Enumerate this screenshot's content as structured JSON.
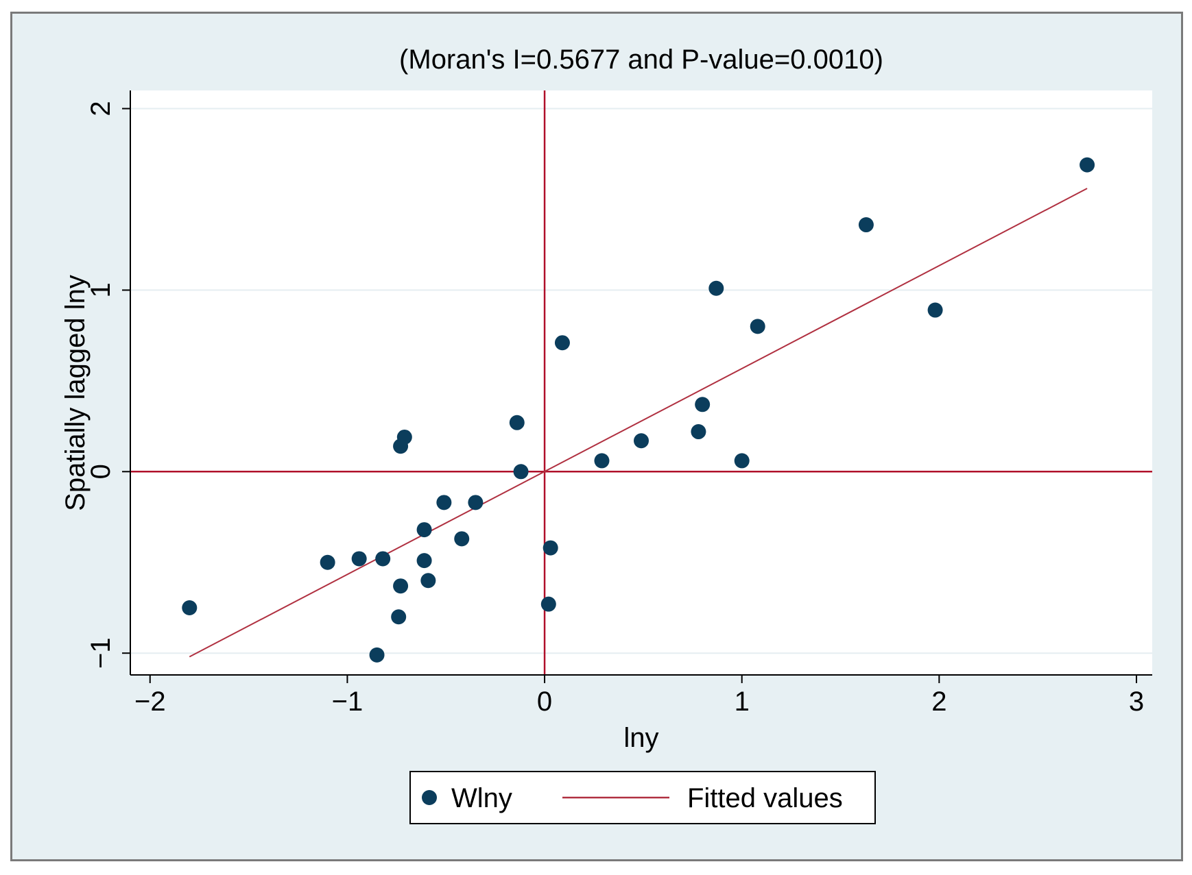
{
  "chart_data": {
    "type": "scatter",
    "title": "(Moran's I=0.5677 and P-value=0.0010)",
    "xlabel": "lny",
    "ylabel": "Spatially lagged lny",
    "xlim": [
      -2.1,
      3.08
    ],
    "ylim": [
      -1.12,
      2.1
    ],
    "xticks": [
      -2,
      -1,
      0,
      1,
      2,
      3
    ],
    "xtick_labels": [
      "−2",
      "−1",
      "0",
      "1",
      "2",
      "3"
    ],
    "yticks": [
      -1,
      0,
      1,
      2
    ],
    "ytick_labels": [
      "−1",
      "0",
      "1",
      "2"
    ],
    "grid": "horizontal",
    "reference_lines": {
      "x": 0,
      "y": 0
    },
    "series": [
      {
        "name": "Wlny",
        "kind": "scatter",
        "color": "#0b3d5c",
        "points": [
          [
            -1.8,
            -0.75
          ],
          [
            -1.1,
            -0.5
          ],
          [
            -0.94,
            -0.48
          ],
          [
            -0.82,
            -0.48
          ],
          [
            -0.85,
            -1.01
          ],
          [
            -0.74,
            -0.8
          ],
          [
            -0.73,
            -0.63
          ],
          [
            -0.73,
            0.14
          ],
          [
            -0.71,
            0.19
          ],
          [
            -0.61,
            -0.32
          ],
          [
            -0.61,
            -0.49
          ],
          [
            -0.59,
            -0.6
          ],
          [
            -0.51,
            -0.17
          ],
          [
            -0.42,
            -0.37
          ],
          [
            -0.35,
            -0.17
          ],
          [
            -0.14,
            0.27
          ],
          [
            -0.12,
            0.0
          ],
          [
            0.03,
            -0.42
          ],
          [
            0.02,
            -0.73
          ],
          [
            0.09,
            0.71
          ],
          [
            0.29,
            0.06
          ],
          [
            0.49,
            0.17
          ],
          [
            0.78,
            0.22
          ],
          [
            0.8,
            0.37
          ],
          [
            0.87,
            1.01
          ],
          [
            1.0,
            0.06
          ],
          [
            1.08,
            0.8
          ],
          [
            1.63,
            1.36
          ],
          [
            1.98,
            0.89
          ],
          [
            2.75,
            1.69
          ]
        ]
      },
      {
        "name": "Fitted values",
        "kind": "line",
        "color": "#b03040",
        "points": [
          [
            -1.8,
            -1.02
          ],
          [
            2.75,
            1.56
          ]
        ]
      }
    ],
    "legend": {
      "position": "bottom-center",
      "entries": [
        "Wlny",
        "Fitted values"
      ]
    },
    "colors": {
      "background": "#e7f0f3",
      "plot_area": "#ffffff",
      "reference_line": "#b0102a",
      "grid": "#e5eef1",
      "marker": "#0b3d5c",
      "fit_line": "#b03040"
    }
  }
}
